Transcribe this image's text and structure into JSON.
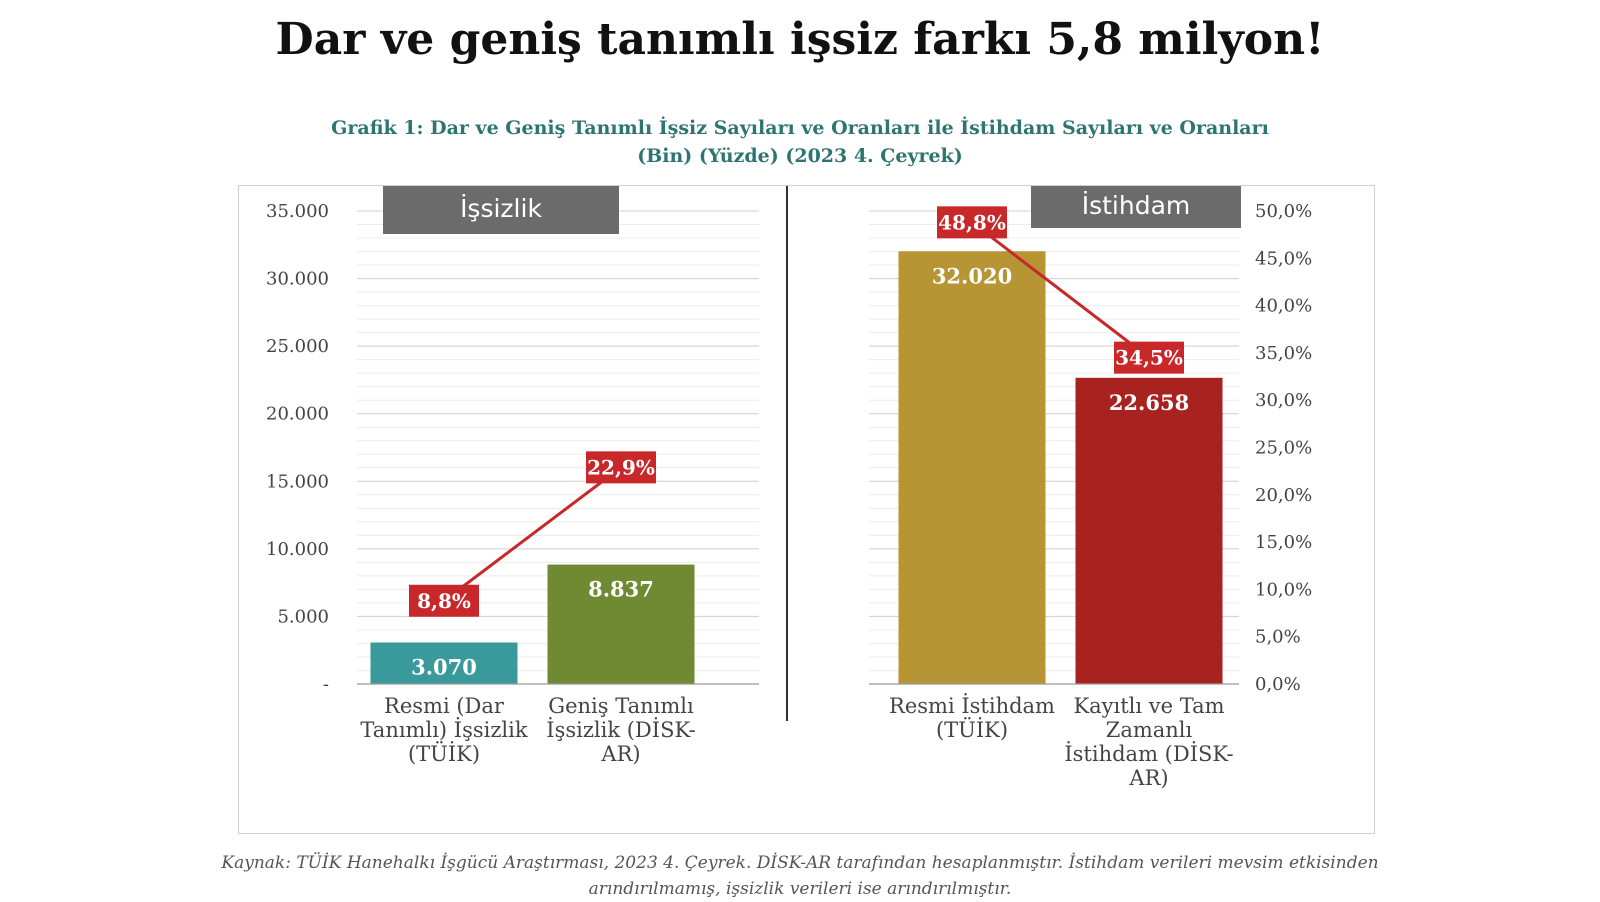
{
  "page_title": "Dar ve geniş tanımlı işsiz farkı 5,8 milyon!",
  "chart_title_line1": "Grafik 1: Dar ve Geniş Tanımlı İşsiz Sayıları ve Oranları ile İstihdam Sayıları ve Oranları",
  "chart_title_line2": "(Bin) (Yüzde) (2023 4. Çeyrek)",
  "source_line1": "Kaynak: TÜİK Hanehalkı İşgücü Araştırması, 2023 4. Çeyrek. DİSK-AR tarafından hesaplanmıştır. İstihdam verileri mevsim etkisinden",
  "source_line2": "arındırılmamış, işsizlik verileri ise arındırılmıştır.",
  "chart_data": {
    "type": "bar",
    "panels": [
      "İşsizlik",
      "İstihdam"
    ],
    "categories": [
      [
        "Resmi (Dar",
        "Tanımlı) İşsizlik",
        "(TÜİK)"
      ],
      [
        "Geniş Tanımlı",
        "İşsizlik (DİSK-",
        "AR)"
      ],
      [
        "Resmi İstihdam",
        "(TÜİK)"
      ],
      [
        "Kayıtlı ve Tam",
        "Zamanlı",
        "İstihdam (DİSK-",
        "AR)"
      ]
    ],
    "values": [
      3070,
      8837,
      32020,
      22658
    ],
    "value_labels": [
      "3.070",
      "8.837",
      "32.020",
      "22.658"
    ],
    "bar_colors": [
      "#3a9a9b",
      "#6f8a32",
      "#b79535",
      "#a8221f"
    ],
    "rates": [
      8.8,
      22.9,
      48.8,
      34.5
    ],
    "rate_labels": [
      "8,8%",
      "22,9%",
      "48,8%",
      "34,5%"
    ],
    "rate_color": "#c8282a",
    "panel_label_color": "#6b6b6b",
    "ylim_left": [
      0,
      35000
    ],
    "yticks_left": [
      "-",
      "5.000",
      "10.000",
      "15.000",
      "20.000",
      "25.000",
      "30.000",
      "35.000"
    ],
    "ylim_right": [
      0,
      50
    ],
    "yticks_right": [
      "0,0%",
      "5,0%",
      "10,0%",
      "15,0%",
      "20,0%",
      "25,0%",
      "30,0%",
      "35,0%",
      "40,0%",
      "45,0%",
      "50,0%"
    ],
    "grid": true
  }
}
